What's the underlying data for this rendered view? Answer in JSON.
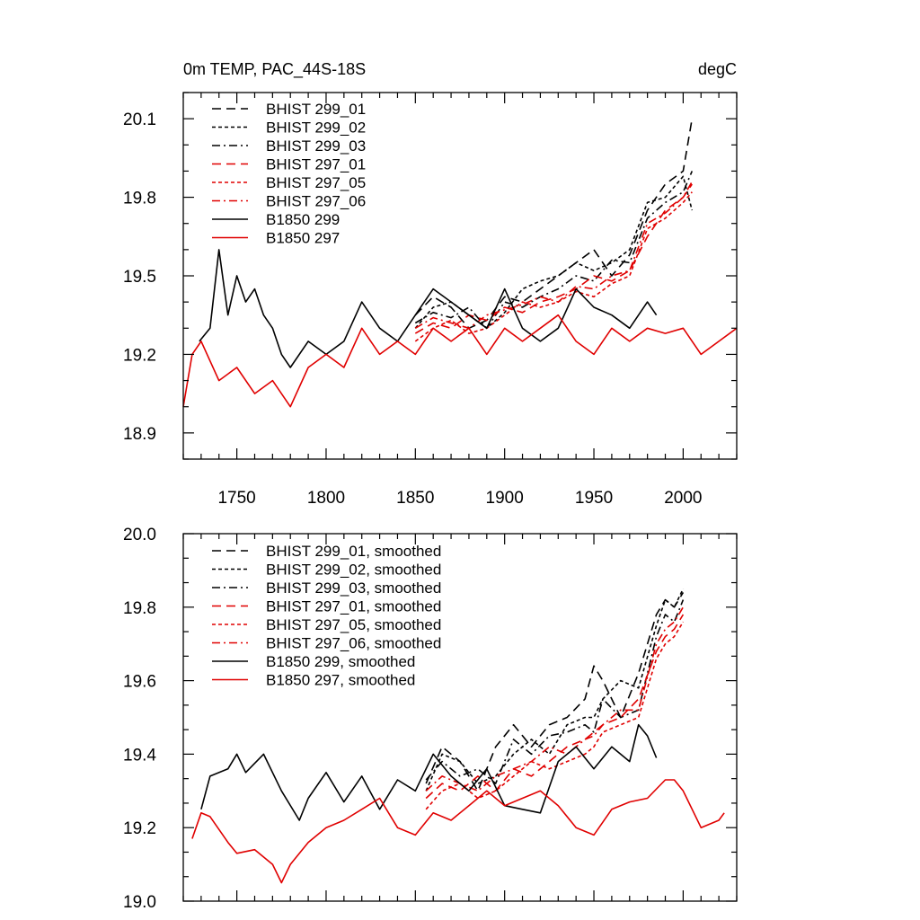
{
  "chart_data": [
    {
      "type": "line",
      "title": "0m TEMP, PAC_44S-18S",
      "units": "degC",
      "xlim": [
        1720,
        2030
      ],
      "ylim": [
        18.8,
        20.2
      ],
      "xticks": [
        1750,
        1800,
        1850,
        1900,
        1950,
        2000
      ],
      "yticks": [
        18.9,
        19.2,
        19.5,
        19.8,
        20.1
      ],
      "xtick_labels": [
        "1750",
        "1800",
        "1850",
        "1900",
        "1950",
        "2000"
      ],
      "ytick_labels": [
        "18.9",
        "19.2",
        "19.5",
        "19.8",
        "20.1"
      ],
      "legend_position": "top-left",
      "series": [
        {
          "name": "BHIST 299_01",
          "color": "#000000",
          "dash": "long-dash",
          "x": [
            1850,
            1860,
            1870,
            1880,
            1890,
            1900,
            1910,
            1920,
            1930,
            1940,
            1950,
            1960,
            1970,
            1980,
            1990,
            2000,
            2005
          ],
          "y": [
            19.35,
            19.42,
            19.38,
            19.3,
            19.33,
            19.42,
            19.4,
            19.45,
            19.5,
            19.55,
            19.6,
            19.5,
            19.58,
            19.75,
            19.85,
            19.9,
            20.1
          ]
        },
        {
          "name": "BHIST 299_02",
          "color": "#000000",
          "dash": "short-dash",
          "x": [
            1850,
            1860,
            1870,
            1880,
            1890,
            1900,
            1910,
            1920,
            1930,
            1940,
            1950,
            1960,
            1970,
            1980,
            1990,
            2000,
            2005
          ],
          "y": [
            19.3,
            19.38,
            19.4,
            19.35,
            19.3,
            19.36,
            19.45,
            19.48,
            19.5,
            19.55,
            19.52,
            19.55,
            19.6,
            19.78,
            19.8,
            19.88,
            19.75
          ]
        },
        {
          "name": "BHIST 299_03",
          "color": "#000000",
          "dash": "dash-dot",
          "x": [
            1850,
            1860,
            1870,
            1880,
            1890,
            1900,
            1910,
            1920,
            1930,
            1940,
            1950,
            1960,
            1970,
            1980,
            1990,
            2000,
            2005
          ],
          "y": [
            19.32,
            19.36,
            19.34,
            19.38,
            19.3,
            19.4,
            19.38,
            19.42,
            19.45,
            19.5,
            19.48,
            19.56,
            19.55,
            19.72,
            19.78,
            19.82,
            19.9
          ]
        },
        {
          "name": "BHIST 297_01",
          "color": "#e00000",
          "dash": "long-dash",
          "x": [
            1850,
            1860,
            1870,
            1880,
            1890,
            1900,
            1910,
            1920,
            1930,
            1940,
            1950,
            1960,
            1970,
            1980,
            1990,
            2000,
            2005
          ],
          "y": [
            19.28,
            19.32,
            19.3,
            19.35,
            19.33,
            19.38,
            19.36,
            19.4,
            19.42,
            19.45,
            19.5,
            19.48,
            19.52,
            19.65,
            19.75,
            19.8,
            19.85
          ]
        },
        {
          "name": "BHIST 297_05",
          "color": "#e00000",
          "dash": "short-dash",
          "x": [
            1850,
            1860,
            1870,
            1880,
            1890,
            1900,
            1910,
            1920,
            1930,
            1940,
            1950,
            1960,
            1970,
            1980,
            1990,
            2000,
            2005
          ],
          "y": [
            19.25,
            19.3,
            19.33,
            19.28,
            19.3,
            19.35,
            19.4,
            19.38,
            19.4,
            19.44,
            19.42,
            19.47,
            19.5,
            19.68,
            19.72,
            19.78,
            19.82
          ]
        },
        {
          "name": "BHIST 297_06",
          "color": "#e00000",
          "dash": "dash-dot",
          "x": [
            1850,
            1860,
            1870,
            1880,
            1890,
            1900,
            1910,
            1920,
            1930,
            1940,
            1950,
            1960,
            1970,
            1980,
            1990,
            2000,
            2005
          ],
          "y": [
            19.3,
            19.34,
            19.32,
            19.3,
            19.35,
            19.37,
            19.39,
            19.42,
            19.4,
            19.46,
            19.45,
            19.5,
            19.52,
            19.7,
            19.74,
            19.8,
            19.86
          ]
        },
        {
          "name": "B1850 299",
          "color": "#000000",
          "dash": "solid",
          "x": [
            1729,
            1735,
            1740,
            1745,
            1750,
            1755,
            1760,
            1765,
            1770,
            1775,
            1780,
            1790,
            1800,
            1810,
            1820,
            1830,
            1840,
            1850,
            1860,
            1870,
            1880,
            1890,
            1900,
            1910,
            1920,
            1930,
            1940,
            1950,
            1960,
            1970,
            1980,
            1985
          ],
          "y": [
            19.25,
            19.3,
            19.6,
            19.35,
            19.5,
            19.4,
            19.45,
            19.35,
            19.3,
            19.2,
            19.15,
            19.25,
            19.2,
            19.25,
            19.4,
            19.3,
            19.25,
            19.35,
            19.45,
            19.4,
            19.35,
            19.3,
            19.45,
            19.3,
            19.25,
            19.3,
            19.45,
            19.38,
            19.35,
            19.3,
            19.4,
            19.35
          ]
        },
        {
          "name": "B1850 297",
          "color": "#e00000",
          "dash": "solid",
          "x": [
            1720,
            1725,
            1730,
            1740,
            1750,
            1760,
            1770,
            1780,
            1790,
            1800,
            1810,
            1820,
            1830,
            1840,
            1850,
            1860,
            1870,
            1880,
            1890,
            1900,
            1910,
            1920,
            1930,
            1940,
            1950,
            1960,
            1970,
            1980,
            1990,
            2000,
            2010,
            2020,
            2030
          ],
          "y": [
            19.0,
            19.2,
            19.25,
            19.1,
            19.15,
            19.05,
            19.1,
            19.0,
            19.15,
            19.2,
            19.15,
            19.3,
            19.2,
            19.25,
            19.2,
            19.3,
            19.25,
            19.3,
            19.2,
            19.3,
            19.25,
            19.3,
            19.35,
            19.25,
            19.2,
            19.3,
            19.25,
            19.3,
            19.28,
            19.3,
            19.2,
            19.25,
            19.3
          ]
        }
      ]
    },
    {
      "type": "line",
      "xlim": [
        1720,
        2030
      ],
      "ylim": [
        19.0,
        20.0
      ],
      "xticks": [
        1750,
        1800,
        1850,
        1900,
        1950,
        2000
      ],
      "yticks": [
        19.0,
        19.2,
        19.4,
        19.6,
        19.8,
        20.0
      ],
      "ytick_labels": [
        "19.0",
        "19.2",
        "19.4",
        "19.6",
        "19.8",
        "20.0"
      ],
      "legend_position": "top-left",
      "series": [
        {
          "name": "BHIST 299_01, smoothed",
          "color": "#000000",
          "dash": "long-dash",
          "x": [
            1856,
            1865,
            1875,
            1885,
            1895,
            1905,
            1915,
            1925,
            1935,
            1945,
            1950,
            1955,
            1965,
            1975,
            1985,
            1990,
            1995,
            2000
          ],
          "y": [
            19.32,
            19.42,
            19.38,
            19.3,
            19.42,
            19.48,
            19.42,
            19.48,
            19.5,
            19.55,
            19.64,
            19.6,
            19.5,
            19.62,
            19.78,
            19.82,
            19.8,
            19.84
          ]
        },
        {
          "name": "BHIST 299_02, smoothed",
          "color": "#000000",
          "dash": "short-dash",
          "x": [
            1856,
            1865,
            1875,
            1885,
            1895,
            1905,
            1915,
            1925,
            1935,
            1945,
            1950,
            1955,
            1965,
            1975,
            1985,
            1990,
            1995,
            2000
          ],
          "y": [
            19.3,
            19.4,
            19.38,
            19.32,
            19.34,
            19.4,
            19.44,
            19.4,
            19.48,
            19.5,
            19.5,
            19.55,
            19.6,
            19.58,
            19.75,
            19.82,
            19.8,
            19.85
          ]
        },
        {
          "name": "BHIST 299_03, smoothed",
          "color": "#000000",
          "dash": "dash-dot",
          "x": [
            1856,
            1865,
            1875,
            1885,
            1895,
            1905,
            1915,
            1925,
            1935,
            1945,
            1950,
            1955,
            1965,
            1975,
            1985,
            1990,
            1995,
            2000
          ],
          "y": [
            19.33,
            19.38,
            19.34,
            19.36,
            19.32,
            19.44,
            19.4,
            19.45,
            19.46,
            19.48,
            19.46,
            19.55,
            19.5,
            19.52,
            19.72,
            19.78,
            19.76,
            19.82
          ]
        },
        {
          "name": "BHIST 297_01, smoothed",
          "color": "#e00000",
          "dash": "long-dash",
          "x": [
            1856,
            1865,
            1875,
            1885,
            1895,
            1905,
            1915,
            1925,
            1935,
            1945,
            1950,
            1955,
            1965,
            1975,
            1985,
            1990,
            1995,
            2000
          ],
          "y": [
            19.28,
            19.32,
            19.3,
            19.34,
            19.3,
            19.36,
            19.34,
            19.38,
            19.42,
            19.44,
            19.46,
            19.48,
            19.5,
            19.55,
            19.68,
            19.72,
            19.74,
            19.78
          ]
        },
        {
          "name": "BHIST 297_05, smoothed",
          "color": "#e00000",
          "dash": "short-dash",
          "x": [
            1856,
            1865,
            1875,
            1885,
            1895,
            1905,
            1915,
            1925,
            1935,
            1945,
            1950,
            1955,
            1965,
            1975,
            1985,
            1990,
            1995,
            2000
          ],
          "y": [
            19.25,
            19.3,
            19.32,
            19.28,
            19.3,
            19.34,
            19.38,
            19.36,
            19.38,
            19.4,
            19.42,
            19.46,
            19.48,
            19.5,
            19.66,
            19.7,
            19.72,
            19.76
          ]
        },
        {
          "name": "BHIST 297_06, smoothed",
          "color": "#e00000",
          "dash": "dash-dot",
          "x": [
            1856,
            1865,
            1875,
            1885,
            1895,
            1905,
            1915,
            1925,
            1935,
            1945,
            1950,
            1955,
            1965,
            1975,
            1985,
            1990,
            1995,
            2000
          ],
          "y": [
            19.3,
            19.34,
            19.32,
            19.3,
            19.34,
            19.36,
            19.38,
            19.42,
            19.4,
            19.44,
            19.45,
            19.48,
            19.52,
            19.52,
            19.7,
            19.74,
            19.76,
            19.8
          ]
        },
        {
          "name": "B1850 299, smoothed",
          "color": "#000000",
          "dash": "solid",
          "x": [
            1730,
            1735,
            1745,
            1750,
            1755,
            1765,
            1775,
            1785,
            1790,
            1800,
            1810,
            1820,
            1830,
            1840,
            1850,
            1860,
            1870,
            1880,
            1890,
            1900,
            1910,
            1920,
            1930,
            1940,
            1950,
            1960,
            1970,
            1975,
            1980,
            1985
          ],
          "y": [
            19.25,
            19.34,
            19.36,
            19.4,
            19.35,
            19.4,
            19.3,
            19.22,
            19.28,
            19.35,
            19.27,
            19.34,
            19.25,
            19.33,
            19.3,
            19.4,
            19.34,
            19.3,
            19.36,
            19.26,
            19.25,
            19.24,
            19.38,
            19.42,
            19.36,
            19.42,
            19.38,
            19.48,
            19.45,
            19.39
          ]
        },
        {
          "name": "B1850 297, smoothed",
          "color": "#e00000",
          "dash": "solid",
          "x": [
            1725,
            1730,
            1735,
            1745,
            1750,
            1760,
            1770,
            1775,
            1780,
            1790,
            1800,
            1810,
            1820,
            1830,
            1840,
            1850,
            1860,
            1870,
            1880,
            1890,
            1900,
            1910,
            1920,
            1930,
            1940,
            1950,
            1960,
            1970,
            1980,
            1990,
            1995,
            2000,
            2010,
            2020,
            2023
          ],
          "y": [
            19.17,
            19.24,
            19.23,
            19.16,
            19.13,
            19.14,
            19.1,
            19.05,
            19.1,
            19.16,
            19.2,
            19.22,
            19.25,
            19.28,
            19.2,
            19.18,
            19.24,
            19.22,
            19.26,
            19.3,
            19.26,
            19.28,
            19.3,
            19.26,
            19.2,
            19.18,
            19.25,
            19.27,
            19.28,
            19.33,
            19.33,
            19.3,
            19.2,
            19.22,
            19.24
          ]
        }
      ]
    }
  ]
}
